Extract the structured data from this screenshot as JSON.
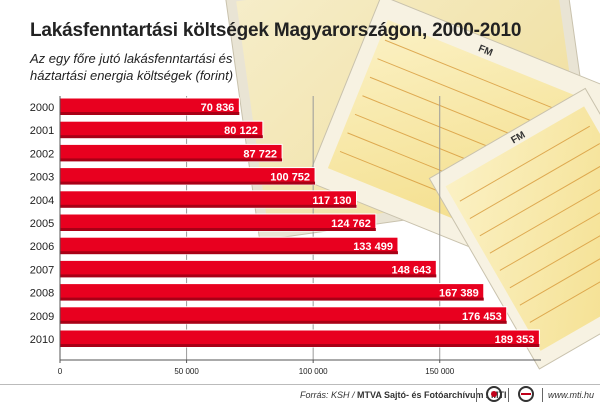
{
  "chart_data": {
    "type": "bar",
    "orientation": "horizontal",
    "title": "Lakásfenntartási költségek Magyarországon, 2000-2010",
    "subtitle": "Az egy főre jutó lakásfenntartási és háztartási energia költségek (forint)",
    "categories": [
      "2000",
      "2001",
      "2002",
      "2003",
      "2004",
      "2005",
      "2006",
      "2007",
      "2008",
      "2009",
      "2010"
    ],
    "values": [
      70836,
      80122,
      87722,
      100752,
      117130,
      124762,
      133499,
      148643,
      167389,
      176453,
      189353
    ],
    "value_labels": [
      "70 836",
      "80 122",
      "87 722",
      "100 752",
      "117 130",
      "124 762",
      "133 499",
      "148 643",
      "167 389",
      "176 453",
      "189 353"
    ],
    "xlim": [
      0,
      190000
    ],
    "x_ticks": [
      0,
      50000,
      100000,
      150000
    ],
    "x_tick_labels": [
      "0",
      "50 000",
      "100 000",
      "150 000"
    ],
    "grid": true,
    "bar_color": "#e8001f"
  },
  "footer": {
    "source_prefix": "Forrás: KSH / ",
    "source_org": "MTVA Sajtó- és Fotóarchívum / MTI",
    "website": "www.mti.hu"
  },
  "background_form_labels": [
    "FM",
    "FM"
  ]
}
